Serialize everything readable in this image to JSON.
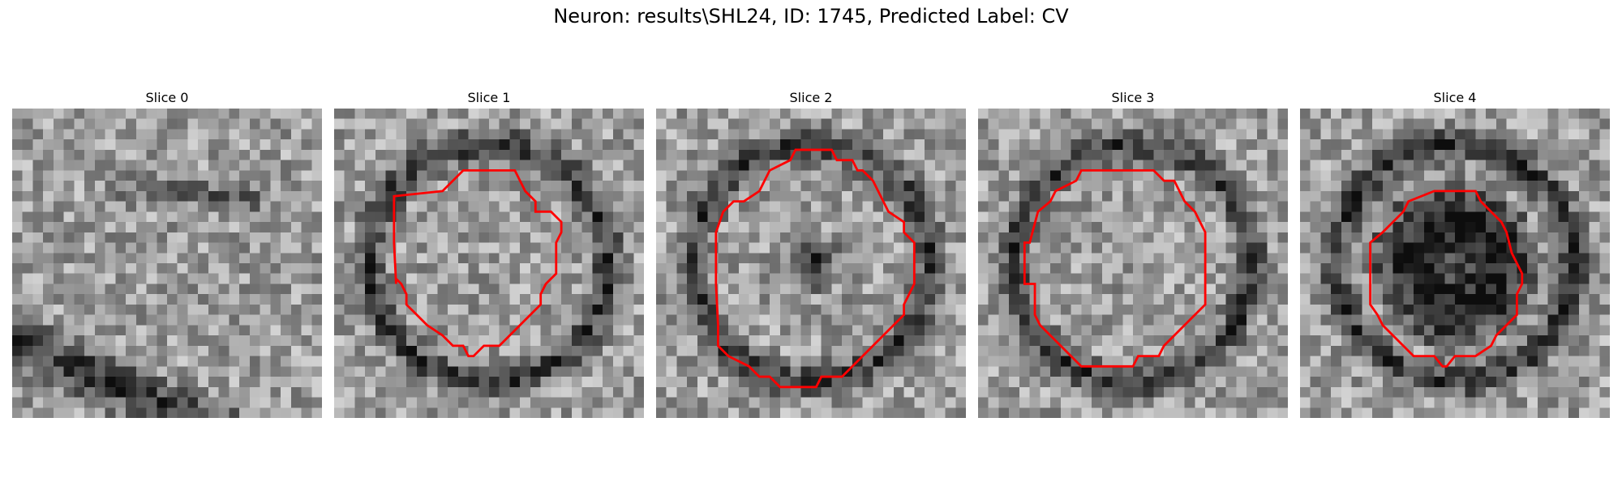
{
  "figure": {
    "title": "Neuron: results\\SHL24, ID: 1745, Predicted Label: CV"
  },
  "colors": {
    "contour": "#ff0000",
    "background": "#ffffff"
  },
  "panels": [
    {
      "title": "Slice 0",
      "has_contour": false,
      "dark_band": "diagonal",
      "seed": 11
    },
    {
      "title": "Slice 1",
      "has_contour": true,
      "dark_band": "ring",
      "seed": 23
    },
    {
      "title": "Slice 2",
      "has_contour": true,
      "dark_band": "ring-center",
      "seed": 37
    },
    {
      "title": "Slice 3",
      "has_contour": true,
      "dark_band": "ring",
      "seed": 41
    },
    {
      "title": "Slice 4",
      "has_contour": true,
      "dark_band": "ring-dark-center",
      "seed": 53
    }
  ]
}
